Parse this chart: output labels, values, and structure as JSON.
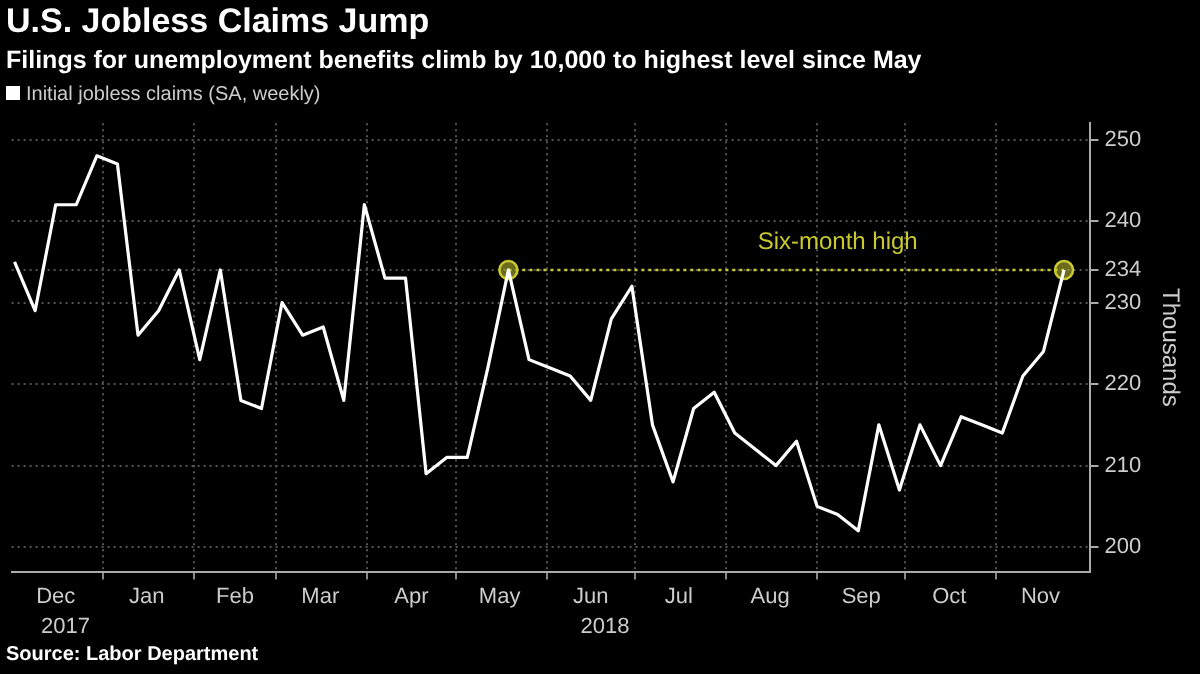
{
  "chart_data": {
    "type": "line",
    "title": "U.S. Jobless Claims Jump",
    "subtitle": "Filings for unemployment benefits climb by 10,000 to highest level since May",
    "ylabel": "Thousands",
    "x": [
      "2017-12-02",
      "2017-12-09",
      "2017-12-16",
      "2017-12-23",
      "2017-12-30",
      "2018-01-06",
      "2018-01-13",
      "2018-01-20",
      "2018-01-27",
      "2018-02-03",
      "2018-02-10",
      "2018-02-17",
      "2018-02-24",
      "2018-03-03",
      "2018-03-10",
      "2018-03-17",
      "2018-03-24",
      "2018-03-31",
      "2018-04-07",
      "2018-04-14",
      "2018-04-21",
      "2018-04-28",
      "2018-05-05",
      "2018-05-12",
      "2018-05-19",
      "2018-05-26",
      "2018-06-02",
      "2018-06-09",
      "2018-06-16",
      "2018-06-23",
      "2018-06-30",
      "2018-07-07",
      "2018-07-14",
      "2018-07-21",
      "2018-07-28",
      "2018-08-04",
      "2018-08-11",
      "2018-08-18",
      "2018-08-25",
      "2018-09-01",
      "2018-09-08",
      "2018-09-15",
      "2018-09-22",
      "2018-09-29",
      "2018-10-06",
      "2018-10-13",
      "2018-10-20",
      "2018-10-27",
      "2018-11-03",
      "2018-11-10",
      "2018-11-17",
      "2018-11-24"
    ],
    "series": [
      {
        "name": "Initial jobless claims (SA, weekly)",
        "color": "#ffffff",
        "marker": "none",
        "line_style": "solid",
        "values": [
          235,
          229,
          242,
          242,
          248,
          247,
          226,
          229,
          234,
          223,
          234,
          218,
          217,
          230,
          226,
          227,
          218,
          242,
          233,
          233,
          209,
          211,
          211,
          222,
          234,
          223,
          222,
          221,
          218,
          228,
          232,
          215,
          208,
          217,
          219,
          214,
          212,
          210,
          213,
          205,
          204,
          202,
          215,
          207,
          215,
          210,
          216,
          215,
          214,
          221,
          224,
          234
        ]
      },
      {
        "type": "line",
        "color": "#c8c832",
        "marker": "circle",
        "line_style": "dotted",
        "x": [
          "2018-05-19",
          "2018-11-24"
        ],
        "values": [
          234,
          234
        ]
      }
    ],
    "xlim": [
      "2017-12-01",
      "2018-12-03"
    ],
    "xticks": [
      {
        "value": "2018-01-01",
        "label": null
      },
      {
        "value": "2018-02-01",
        "label": null
      },
      {
        "value": "2018-03-01",
        "label": null
      },
      {
        "value": "2018-04-01",
        "label": null
      },
      {
        "value": "2018-05-01",
        "label": null
      },
      {
        "value": "2018-06-01",
        "label": null
      },
      {
        "value": "2018-07-01",
        "label": null
      },
      {
        "value": "2018-08-01",
        "label": null
      },
      {
        "value": "2018-09-01",
        "label": null
      },
      {
        "value": "2018-10-01",
        "label": null
      },
      {
        "value": "2018-11-01",
        "label": null
      },
      {
        "value": "2017-12-16",
        "label": "Dec"
      },
      {
        "value": "2018-01-16",
        "label": "Jan"
      },
      {
        "value": "2018-02-15",
        "label": "Feb"
      },
      {
        "value": "2018-03-16",
        "label": "Mar"
      },
      {
        "value": "2018-04-16",
        "label": "Apr"
      },
      {
        "value": "2018-05-16",
        "label": "May"
      },
      {
        "value": "2018-06-16",
        "label": "Jun"
      },
      {
        "value": "2018-07-16",
        "label": "Jul"
      },
      {
        "value": "2018-08-16",
        "label": "Aug"
      },
      {
        "value": "2018-09-16",
        "label": "Sep"
      },
      {
        "value": "2018-10-16",
        "label": "Oct"
      },
      {
        "value": "2018-11-16",
        "label": "Nov"
      }
    ],
    "ylim": [
      197,
      252
    ],
    "yticks": [
      200,
      210,
      220,
      230,
      234,
      240,
      250
    ],
    "grid": true,
    "legend": "top left",
    "annotations": [
      {
        "text": "Six-month high",
        "x": "2018-09-08",
        "y": 234
      },
      "2017",
      "2018",
      "Source: Labor Department"
    ]
  }
}
